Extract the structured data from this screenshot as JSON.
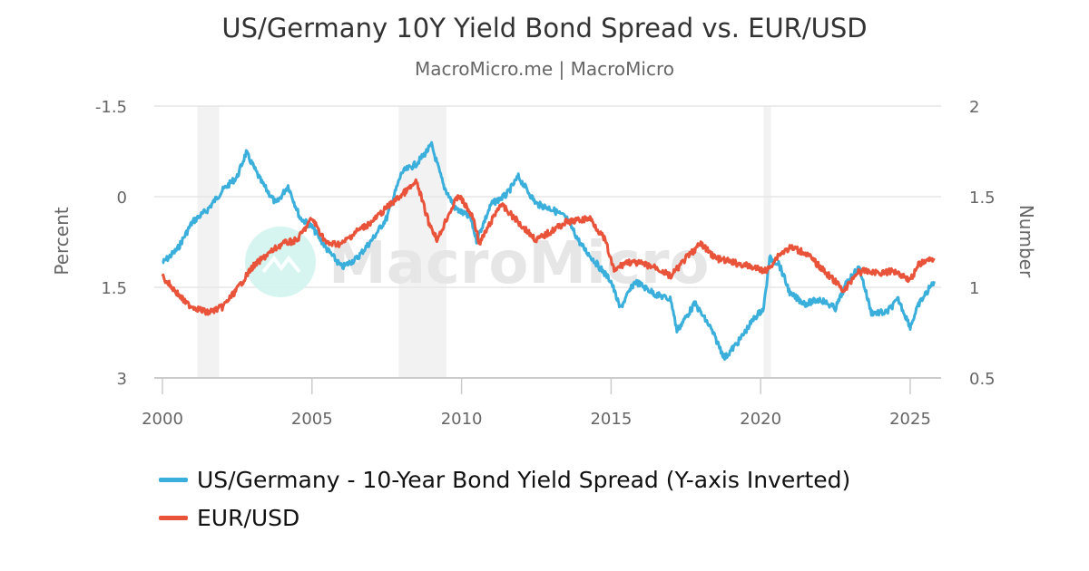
{
  "header": {
    "title": "US/Germany 10Y Yield Bond Spread vs. EUR/USD",
    "subtitle": "MacroMicro.me | MacroMicro"
  },
  "watermark": {
    "text": "MacroMicro",
    "logo_color": "#d2f4ee"
  },
  "colors": {
    "spread": "#3aafdb",
    "eurusd": "#e8533a",
    "recession_band": "#f2f2f2",
    "grid": "#e6e6e6",
    "text": "#666666"
  },
  "legend": {
    "items": [
      {
        "label": "US/Germany - 10-Year Bond Yield Spread (Y-axis Inverted)",
        "color": "#3aafdb"
      },
      {
        "label": "EUR/USD",
        "color": "#e8533a"
      }
    ]
  },
  "chart_data": {
    "type": "line",
    "title": "US/Germany 10Y Yield Bond Spread vs. EUR/USD",
    "subtitle": "MacroMicro.me | MacroMicro",
    "xlabel": "",
    "x_ticks": [
      2000,
      2005,
      2010,
      2015,
      2020,
      2025
    ],
    "x_range": [
      1999.75,
      2026.05
    ],
    "left_axis": {
      "label": "Percent",
      "inverted": true,
      "ticks": [
        "-1.5",
        "0",
        "1.5",
        "3"
      ],
      "range": [
        -1.5,
        3
      ]
    },
    "right_axis": {
      "label": "Number",
      "ticks": [
        "2",
        "1.5",
        "1",
        "0.5"
      ],
      "range": [
        0.5,
        2
      ]
    },
    "grid": true,
    "legend_position": "bottom",
    "recession_bands": [
      {
        "start": 2001.17,
        "end": 2001.9
      },
      {
        "start": 2007.9,
        "end": 2009.5
      },
      {
        "start": 2020.1,
        "end": 2020.35
      }
    ],
    "series": [
      {
        "name": "US/Germany - 10-Year Bond Yield Spread (Y-axis Inverted)",
        "axis": "left",
        "color": "#3aafdb",
        "x": [
          2000.0,
          2000.5,
          2001.0,
          2001.5,
          2002.0,
          2002.5,
          2002.8,
          2003.3,
          2003.8,
          2004.2,
          2004.6,
          2005.0,
          2005.5,
          2006.0,
          2006.5,
          2007.0,
          2007.5,
          2008.0,
          2008.5,
          2009.0,
          2009.4,
          2009.8,
          2010.3,
          2010.5,
          2011.0,
          2011.5,
          2011.9,
          2012.5,
          2013.0,
          2013.5,
          2014.0,
          2014.5,
          2015.0,
          2015.3,
          2015.8,
          2016.5,
          2017.0,
          2017.2,
          2017.8,
          2018.3,
          2018.8,
          2019.3,
          2019.8,
          2020.1,
          2020.3,
          2020.6,
          2021.0,
          2021.5,
          2022.0,
          2022.5,
          2022.9,
          2023.3,
          2023.7,
          2024.2,
          2024.6,
          2025.0,
          2025.3,
          2025.8
        ],
        "values": [
          1.1,
          0.87,
          0.42,
          0.22,
          -0.1,
          -0.33,
          -0.73,
          -0.25,
          0.12,
          -0.18,
          0.35,
          0.5,
          0.87,
          1.17,
          1.02,
          0.72,
          0.35,
          -0.4,
          -0.55,
          -0.85,
          -0.18,
          0.2,
          0.35,
          0.72,
          0.12,
          -0.03,
          -0.33,
          0.12,
          0.2,
          0.35,
          0.8,
          1.1,
          1.4,
          1.85,
          1.4,
          1.62,
          1.7,
          2.22,
          1.77,
          2.15,
          2.67,
          2.37,
          2.0,
          1.85,
          1.02,
          1.1,
          1.62,
          1.77,
          1.7,
          1.85,
          1.4,
          1.17,
          1.92,
          1.92,
          1.7,
          2.15,
          1.77,
          1.4
        ]
      },
      {
        "name": "EUR/USD",
        "axis": "right",
        "color": "#e8533a",
        "x": [
          2000.0,
          2000.8,
          2001.5,
          2002.0,
          2002.5,
          2003.0,
          2003.5,
          2004.0,
          2004.5,
          2005.0,
          2005.5,
          2006.0,
          2006.5,
          2007.0,
          2007.5,
          2008.0,
          2008.5,
          2008.9,
          2009.2,
          2009.5,
          2009.9,
          2010.4,
          2010.6,
          2011.3,
          2011.9,
          2012.5,
          2013.0,
          2013.5,
          2014.3,
          2014.8,
          2015.1,
          2015.5,
          2016.0,
          2016.5,
          2017.0,
          2017.5,
          2018.0,
          2018.5,
          2019.0,
          2019.5,
          2020.2,
          2020.6,
          2021.0,
          2021.5,
          2022.0,
          2022.5,
          2022.8,
          2023.2,
          2023.5,
          2024.0,
          2024.5,
          2025.0,
          2025.3,
          2025.8
        ],
        "values": [
          1.06,
          0.91,
          0.86,
          0.89,
          0.99,
          1.11,
          1.18,
          1.24,
          1.26,
          1.38,
          1.24,
          1.24,
          1.31,
          1.36,
          1.44,
          1.51,
          1.58,
          1.36,
          1.26,
          1.38,
          1.51,
          1.38,
          1.24,
          1.46,
          1.36,
          1.26,
          1.31,
          1.36,
          1.38,
          1.26,
          1.09,
          1.14,
          1.13,
          1.11,
          1.06,
          1.16,
          1.24,
          1.16,
          1.14,
          1.12,
          1.09,
          1.18,
          1.22,
          1.19,
          1.11,
          1.03,
          0.98,
          1.08,
          1.09,
          1.08,
          1.09,
          1.04,
          1.13,
          1.16
        ]
      }
    ]
  }
}
